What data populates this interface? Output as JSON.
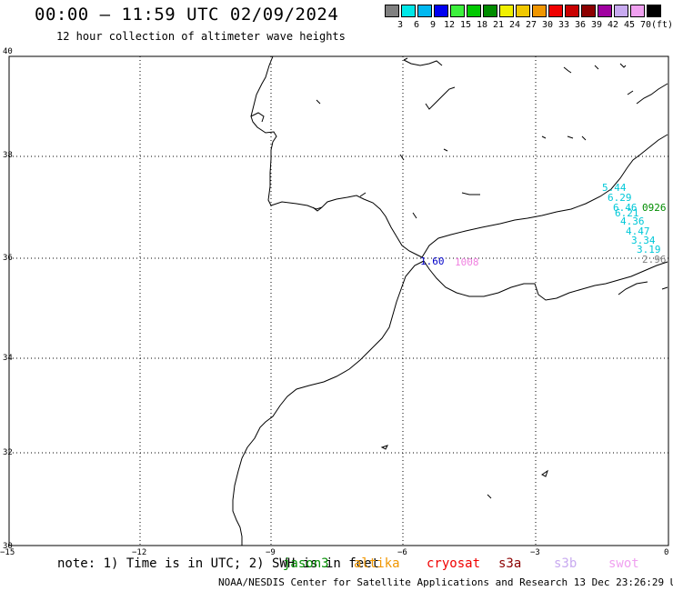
{
  "header": {
    "title": "00:00 – 11:59 UTC 02/09/2024",
    "subtitle": "12 hour collection of altimeter wave heights"
  },
  "scale": {
    "unit": "(ft)",
    "bins": [
      {
        "label": "",
        "color": "#808080"
      },
      {
        "label": "3",
        "color": "#00e8e8"
      },
      {
        "label": "6",
        "color": "#00b8f0"
      },
      {
        "label": "9",
        "color": "#0000f0"
      },
      {
        "label": "12",
        "color": "#3cf03c"
      },
      {
        "label": "15",
        "color": "#00c800"
      },
      {
        "label": "18",
        "color": "#008c00"
      },
      {
        "label": "21",
        "color": "#f0f000"
      },
      {
        "label": "24",
        "color": "#f0c800"
      },
      {
        "label": "27",
        "color": "#f09600"
      },
      {
        "label": "30",
        "color": "#f00000"
      },
      {
        "label": "33",
        "color": "#c80000"
      },
      {
        "label": "36",
        "color": "#8c0000"
      },
      {
        "label": "39",
        "color": "#a000a0"
      },
      {
        "label": "42",
        "color": "#c8aaf0"
      },
      {
        "label": "45",
        "color": "#f0a0f0"
      },
      {
        "label": "70",
        "color": "#000000"
      }
    ]
  },
  "axes": {
    "lat_labels": [
      "40",
      "38",
      "36",
      "34",
      "32",
      "30"
    ],
    "lon_labels": [
      "−15",
      "−12",
      "−9",
      "−6",
      "−3",
      "0"
    ]
  },
  "readings": [
    {
      "text": "5.44",
      "color": "#00c8d8"
    },
    {
      "text": "6.29",
      "color": "#00c8d8"
    },
    {
      "text": "6.46",
      "color": "#00c8d8"
    },
    {
      "text": "6.21",
      "color": "#00c8d8"
    },
    {
      "text": "4.36",
      "color": "#00c8d8"
    },
    {
      "text": "4.47",
      "color": "#00c8d8"
    },
    {
      "text": "3.34",
      "color": "#00c8d8"
    },
    {
      "text": "3.19",
      "color": "#00c8d8"
    },
    {
      "text": "2.96",
      "color": "#808080"
    },
    {
      "text": "1.60",
      "color": "#0000c8"
    },
    {
      "text": "0926",
      "color": "#008c00"
    },
    {
      "text": "1008",
      "color": "#f080e0"
    }
  ],
  "footer": {
    "note": "note: 1) Time is in UTC; 2) SWH is in feet",
    "missions": [
      {
        "name": "jason3",
        "color": "#008c00"
      },
      {
        "name": "altika",
        "color": "#f09600"
      },
      {
        "name": "cryosat",
        "color": "#f00000"
      },
      {
        "name": "s3a",
        "color": "#8c0000"
      },
      {
        "name": "s3b",
        "color": "#c8aaf0"
      },
      {
        "name": "swot",
        "color": "#f0a0f0"
      }
    ],
    "credit": "NOAA/NESDIS Center for Satellite Applications and Research    13 Dec 23:26:29 UTC 2024"
  }
}
